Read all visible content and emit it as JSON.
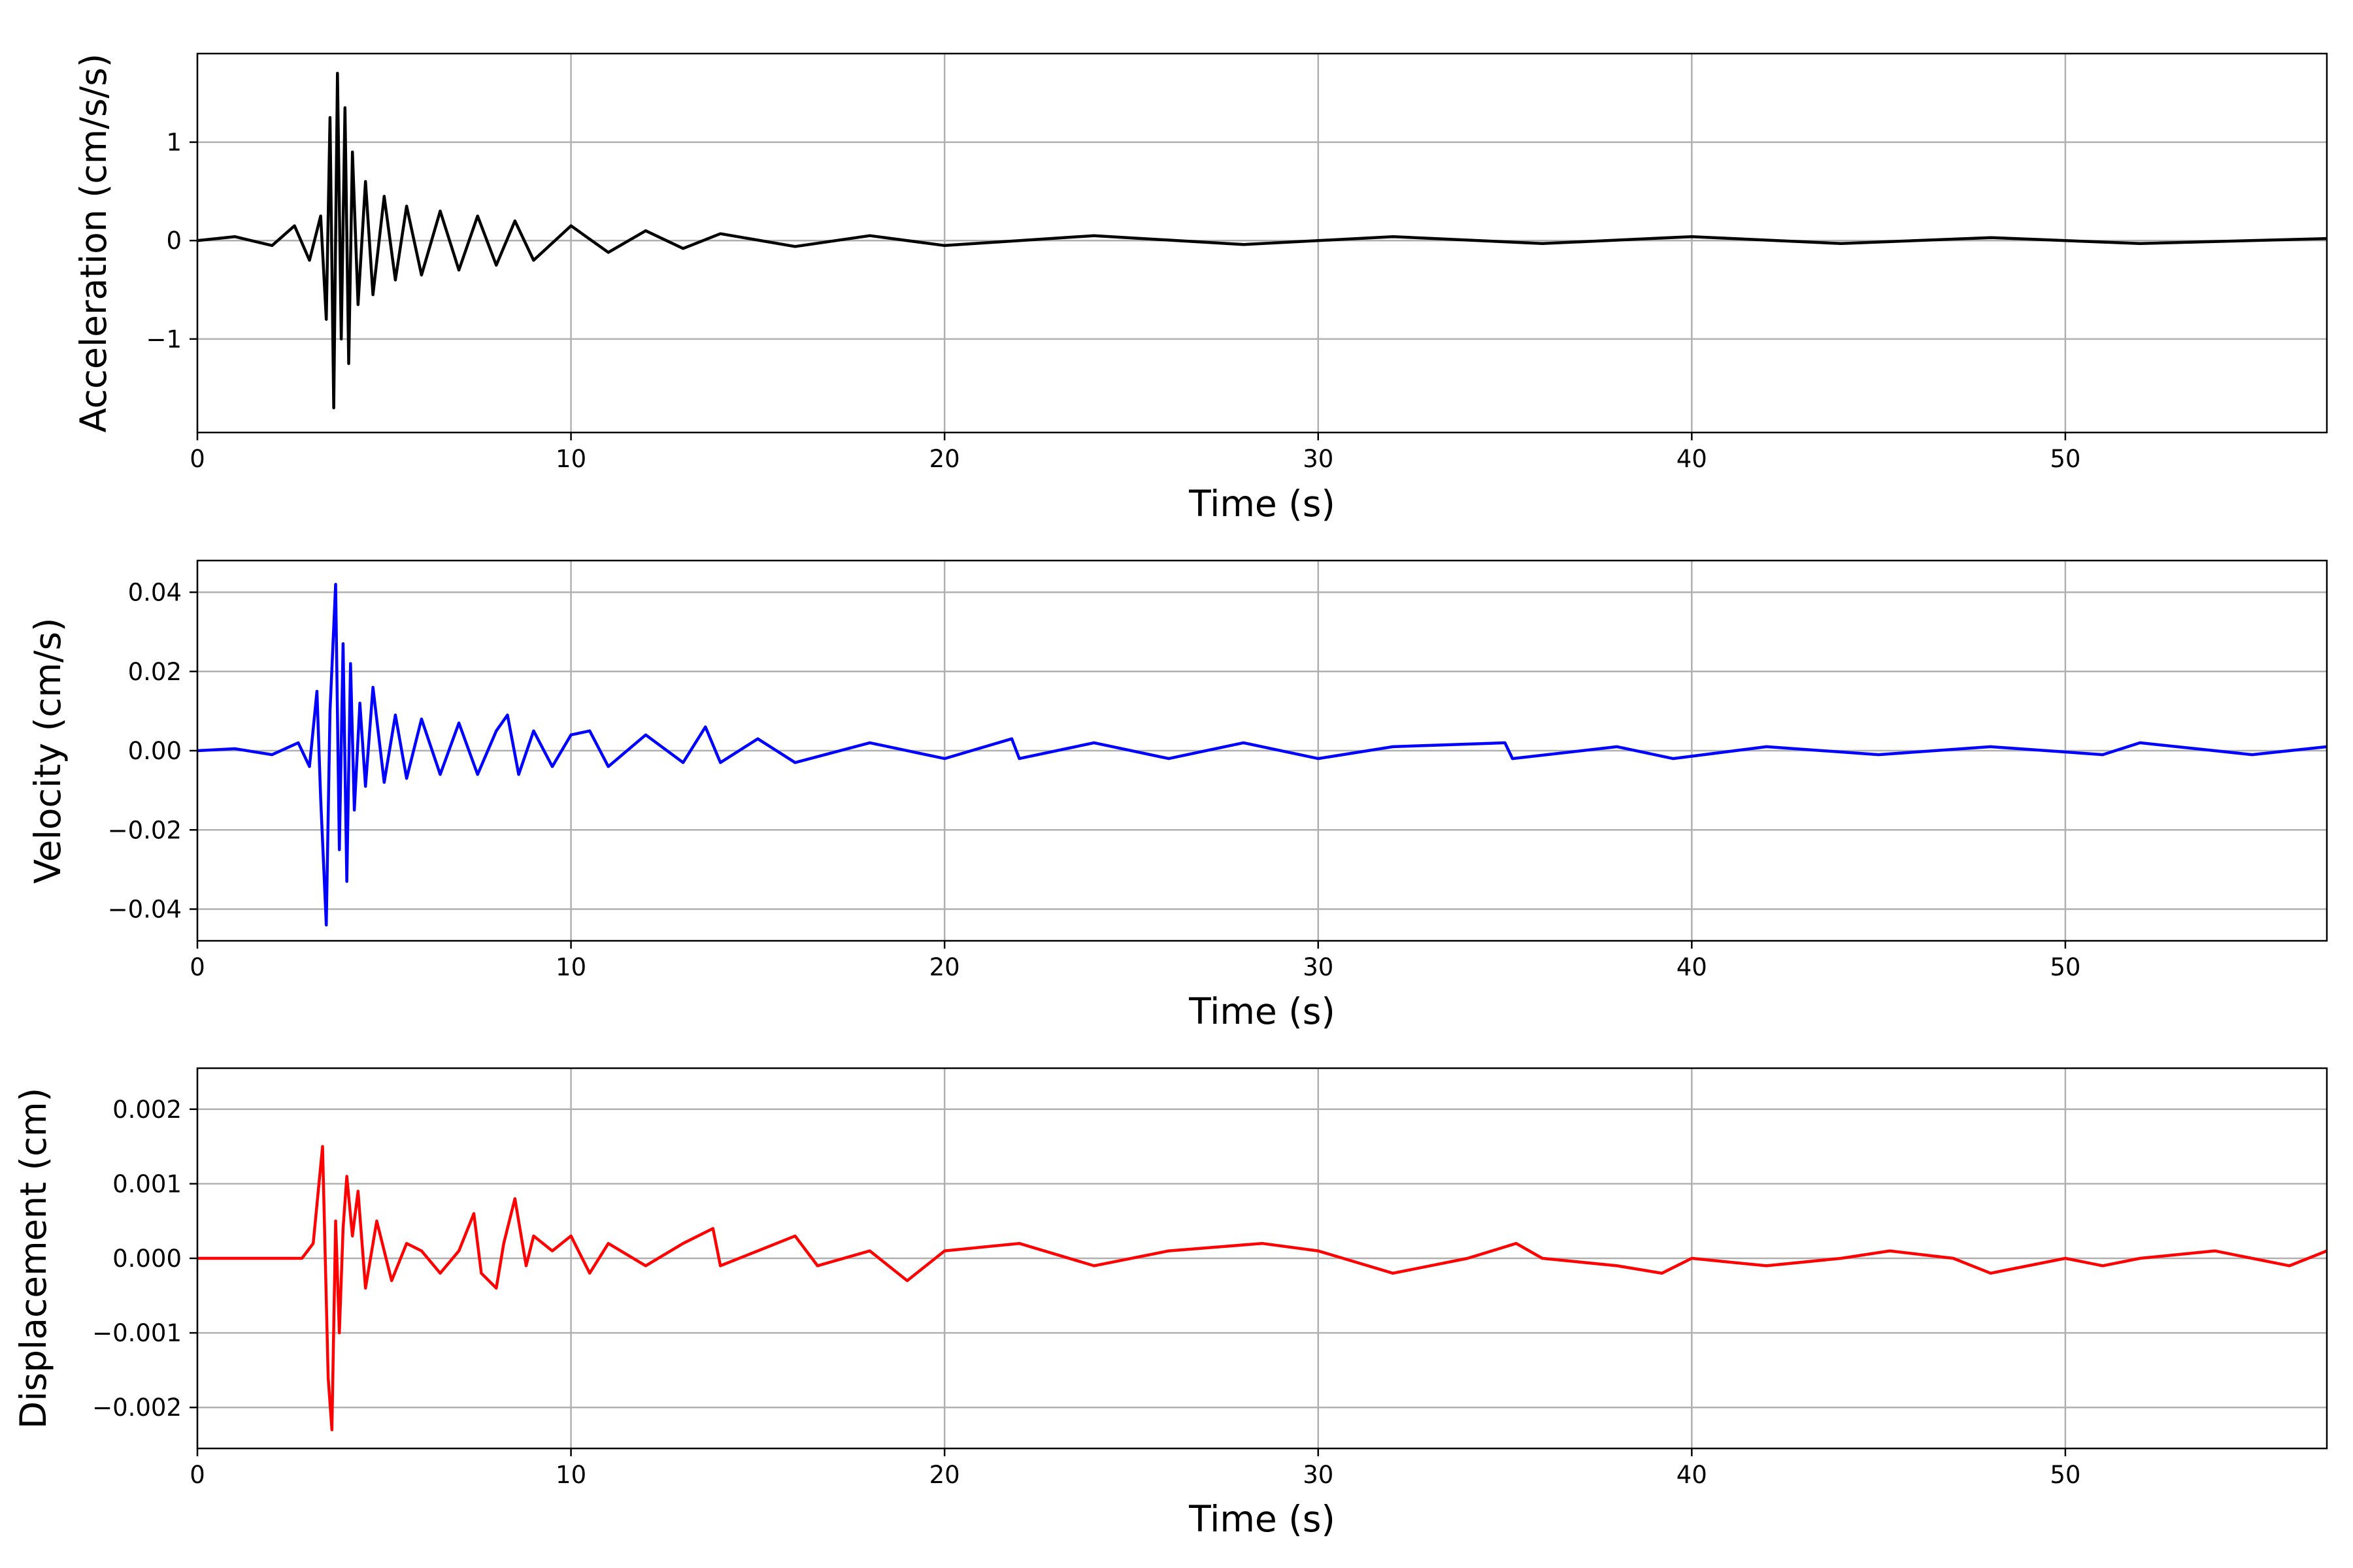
{
  "chart_data": [
    {
      "type": "line",
      "xlabel": "Time (s)",
      "ylabel": "Acceleration (cm/s/s)",
      "xlim": [
        0,
        57
      ],
      "ylim": [
        -1.95,
        1.9
      ],
      "xticks": [
        0,
        10,
        20,
        30,
        40,
        50
      ],
      "yticks": [
        -1,
        0,
        1
      ],
      "yticklabels": [
        "−1",
        "0",
        "1"
      ],
      "grid": true,
      "line_color": "#000000",
      "series": [
        {
          "x": [
            0,
            1,
            2,
            2.6,
            3,
            3.3,
            3.45,
            3.55,
            3.65,
            3.75,
            3.85,
            3.95,
            4.05,
            4.15,
            4.3,
            4.5,
            4.7,
            5.0,
            5.3,
            5.6,
            6,
            6.5,
            7,
            7.5,
            8,
            8.5,
            9,
            10,
            11,
            12,
            13,
            14,
            16,
            18,
            20,
            24,
            28,
            32,
            36,
            40,
            44,
            48,
            52,
            57
          ],
          "y": [
            0,
            0.04,
            -0.05,
            0.15,
            -0.2,
            0.25,
            -0.8,
            1.25,
            -1.7,
            1.7,
            -1.0,
            1.35,
            -1.25,
            0.9,
            -0.65,
            0.6,
            -0.55,
            0.45,
            -0.4,
            0.35,
            -0.35,
            0.3,
            -0.3,
            0.25,
            -0.25,
            0.2,
            -0.2,
            0.15,
            -0.12,
            0.1,
            -0.08,
            0.07,
            -0.06,
            0.05,
            -0.05,
            0.05,
            -0.04,
            0.04,
            -0.03,
            0.04,
            -0.03,
            0.03,
            -0.03,
            0.02
          ]
        }
      ]
    },
    {
      "type": "line",
      "xlabel": "Time (s)",
      "ylabel": "Velocity (cm/s)",
      "xlim": [
        0,
        57
      ],
      "ylim": [
        -0.048,
        0.048
      ],
      "xticks": [
        0,
        10,
        20,
        30,
        40,
        50
      ],
      "yticks": [
        -0.04,
        -0.02,
        0.0,
        0.02,
        0.04
      ],
      "yticklabels": [
        "−0.04",
        "−0.02",
        "0.00",
        "0.02",
        "0.04"
      ],
      "grid": true,
      "line_color": "#0000ff",
      "series": [
        {
          "x": [
            0,
            1,
            2,
            2.7,
            3.0,
            3.2,
            3.3,
            3.45,
            3.55,
            3.7,
            3.8,
            3.9,
            4.0,
            4.1,
            4.2,
            4.35,
            4.5,
            4.7,
            5.0,
            5.3,
            5.6,
            6,
            6.5,
            7,
            7.5,
            8,
            8.3,
            8.6,
            9,
            9.5,
            10,
            10.5,
            11,
            12,
            13,
            13.6,
            14,
            15,
            16,
            18,
            20,
            21.8,
            22,
            24,
            26,
            28,
            30,
            32,
            35,
            35.2,
            38,
            39.5,
            42,
            45,
            48,
            51,
            52,
            55,
            57
          ],
          "y": [
            0,
            0.0005,
            -0.001,
            0.002,
            -0.004,
            0.015,
            -0.012,
            -0.044,
            0.01,
            0.042,
            -0.025,
            0.027,
            -0.033,
            0.022,
            -0.015,
            0.012,
            -0.009,
            0.016,
            -0.008,
            0.009,
            -0.007,
            0.008,
            -0.006,
            0.007,
            -0.006,
            0.005,
            0.009,
            -0.006,
            0.005,
            -0.004,
            0.004,
            0.005,
            -0.004,
            0.004,
            -0.003,
            0.006,
            -0.003,
            0.003,
            -0.003,
            0.002,
            -0.002,
            0.003,
            -0.002,
            0.002,
            -0.002,
            0.002,
            -0.002,
            0.001,
            0.002,
            -0.002,
            0.001,
            -0.002,
            0.001,
            -0.001,
            0.001,
            -0.001,
            0.002,
            -0.001,
            0.001
          ]
        }
      ]
    },
    {
      "type": "line",
      "xlabel": "Time (s)",
      "ylabel": "Displacement (cm)",
      "xlim": [
        0,
        57
      ],
      "ylim": [
        -0.00255,
        0.00255
      ],
      "xticks": [
        0,
        10,
        20,
        30,
        40,
        50
      ],
      "yticks": [
        -0.002,
        -0.001,
        0.0,
        0.001,
        0.002
      ],
      "yticklabels": [
        "−0.002",
        "−0.001",
        "0.000",
        "0.001",
        "0.002"
      ],
      "grid": true,
      "line_color": "#ff0000",
      "series": [
        {
          "x": [
            0,
            1,
            2,
            2.8,
            3.1,
            3.35,
            3.5,
            3.6,
            3.7,
            3.8,
            3.9,
            4.0,
            4.15,
            4.3,
            4.5,
            4.8,
            5.2,
            5.6,
            6,
            6.5,
            7,
            7.4,
            7.6,
            8,
            8.2,
            8.5,
            8.8,
            9,
            9.5,
            10,
            10.5,
            11,
            12,
            13,
            13.8,
            14,
            15,
            16,
            16.6,
            18,
            19,
            20,
            22,
            24,
            26,
            28.5,
            30,
            32,
            34,
            35.3,
            36,
            38,
            39.2,
            40,
            42,
            44,
            45.3,
            47,
            48,
            50,
            51,
            52,
            54,
            56,
            57
          ],
          "y": [
            0,
            0,
            0,
            0,
            0.0002,
            0.0015,
            -0.0016,
            -0.0023,
            0.0005,
            -0.001,
            0.0004,
            0.0011,
            0.0003,
            0.0009,
            -0.0004,
            0.0005,
            -0.0003,
            0.0002,
            0.0001,
            -0.0002,
            0.0001,
            0.0006,
            -0.0002,
            -0.0004,
            0.0002,
            0.0008,
            -0.0001,
            0.0003,
            0.0001,
            0.0003,
            -0.0002,
            0.0002,
            -0.0001,
            0.0002,
            0.0004,
            -0.0001,
            0.0001,
            0.0003,
            -0.0001,
            0.0001,
            -0.0003,
            0.0001,
            0.0002,
            -0.0001,
            0.0001,
            0.0002,
            0.0001,
            -0.0002,
            0,
            0.0002,
            0,
            -0.0001,
            -0.0002,
            0,
            -0.0001,
            0,
            0.0001,
            0,
            -0.0002,
            0,
            -0.0001,
            0,
            0.0001,
            -0.0001,
            0.0001
          ]
        }
      ]
    }
  ]
}
